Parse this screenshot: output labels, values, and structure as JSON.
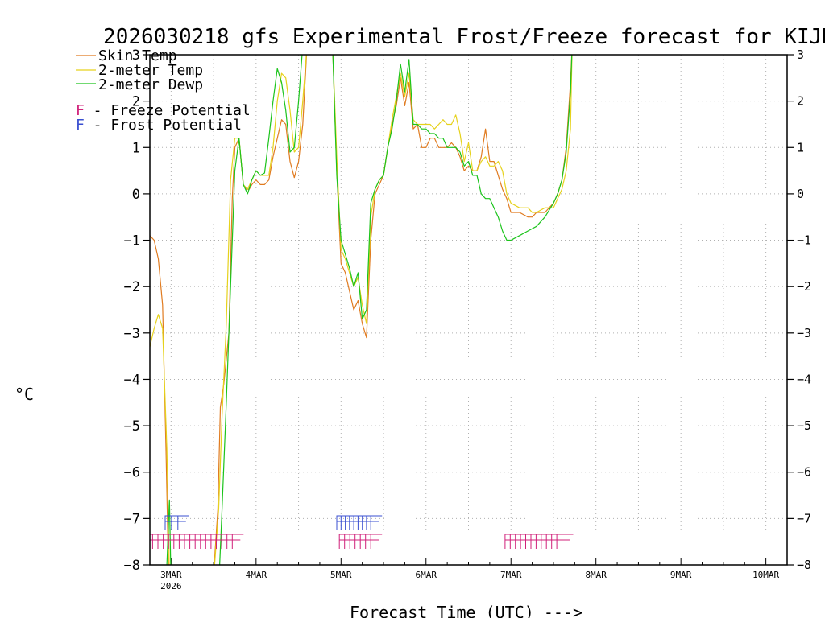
{
  "chart_data": {
    "type": "line",
    "title": "2026030218 gfs Experimental Frost/Freeze forecast for KIJD",
    "ylabel": "°C",
    "xlabel": "Forecast Time (UTC) --->",
    "ylim": [
      -8,
      3
    ],
    "xlim": [
      2.75,
      10.25
    ],
    "yticks": [
      "−8",
      "−7",
      "−6",
      "−5",
      "−4",
      "−3",
      "−2",
      "−1",
      "0",
      "1",
      "2",
      "3"
    ],
    "yticks_right": [
      "−8",
      "−7",
      "−6",
      "−5",
      "−4",
      "−3",
      "−2",
      "−1",
      "0",
      "1",
      "2",
      "3"
    ],
    "xticks": [
      "3MAR",
      "4MAR",
      "5MAR",
      "6MAR",
      "7MAR",
      "8MAR",
      "9MAR",
      "10MAR"
    ],
    "xtick_sublabel": "2026",
    "grid": true,
    "legend": [
      {
        "label": "Skin Temp",
        "color": "#e07b20"
      },
      {
        "label": "2-meter Temp",
        "color": "#e6d21c"
      },
      {
        "label": "2-meter Dewp",
        "color": "#1cc41c"
      }
    ],
    "potential_legend": [
      {
        "marker": "F",
        "text": " - Freeze Potential",
        "color": "#d0207a"
      },
      {
        "marker": "F",
        "text": " - Frost Potential",
        "color": "#3a4fd0"
      }
    ],
    "series": [
      {
        "name": "Skin Temp",
        "color": "#e07b20",
        "x": [
          2.75,
          2.8,
          2.85,
          2.9,
          2.94,
          2.97,
          3.0,
          3.05,
          3.1,
          3.2,
          3.3,
          3.4,
          3.5,
          3.55,
          3.58,
          3.62,
          3.68,
          3.72,
          3.75,
          3.8,
          3.85,
          3.88,
          3.92,
          3.95,
          4.0,
          4.05,
          4.1,
          4.15,
          4.2,
          4.25,
          4.3,
          4.35,
          4.4,
          4.45,
          4.5,
          4.55,
          4.6,
          4.65,
          4.9,
          4.95,
          5.0,
          5.05,
          5.1,
          5.15,
          5.2,
          5.25,
          5.3,
          5.35,
          5.4,
          5.45,
          5.5,
          5.55,
          5.6,
          5.65,
          5.7,
          5.75,
          5.8,
          5.85,
          5.9,
          5.95,
          6.0,
          6.05,
          6.1,
          6.15,
          6.2,
          6.25,
          6.3,
          6.35,
          6.4,
          6.45,
          6.5,
          6.55,
          6.6,
          6.65,
          6.7,
          6.75,
          6.8,
          6.85,
          6.9,
          6.95,
          7.0,
          7.1,
          7.2,
          7.25,
          7.3,
          7.4,
          7.5,
          7.55,
          7.6,
          7.65,
          7.7,
          7.72
        ],
        "values": [
          -0.9,
          -1.0,
          -1.4,
          -2.4,
          -5.5,
          -8.2,
          -8.5,
          -8.5,
          -8.5,
          -8.5,
          -8.5,
          -8.5,
          -8.2,
          -6.8,
          -4.6,
          -4.1,
          -3.0,
          -0.1,
          1.0,
          1.2,
          0.2,
          0.1,
          0.1,
          0.2,
          0.3,
          0.2,
          0.2,
          0.3,
          0.8,
          1.2,
          1.6,
          1.5,
          0.7,
          0.35,
          0.7,
          1.5,
          3.2,
          3.2,
          3.2,
          0.5,
          -1.5,
          -1.7,
          -2.1,
          -2.5,
          -2.3,
          -2.8,
          -3.1,
          -1.0,
          0.0,
          0.2,
          0.4,
          1.0,
          1.5,
          1.9,
          2.5,
          1.9,
          2.4,
          1.4,
          1.5,
          1.0,
          1.0,
          1.2,
          1.2,
          1.0,
          1.0,
          1.0,
          1.1,
          1.0,
          0.8,
          0.5,
          0.6,
          0.5,
          0.5,
          0.8,
          1.4,
          0.7,
          0.7,
          0.4,
          0.1,
          -0.1,
          -0.4,
          -0.4,
          -0.5,
          -0.5,
          -0.4,
          -0.4,
          -0.2,
          0.0,
          0.3,
          1.0,
          2.4,
          3.2
        ]
      },
      {
        "name": "2-meter Temp",
        "color": "#e6d21c",
        "x": [
          2.75,
          2.8,
          2.85,
          2.9,
          2.95,
          2.98,
          3.0,
          3.1,
          3.2,
          3.3,
          3.4,
          3.5,
          3.56,
          3.6,
          3.65,
          3.7,
          3.75,
          3.8,
          3.85,
          3.9,
          3.95,
          4.0,
          4.05,
          4.1,
          4.15,
          4.2,
          4.25,
          4.3,
          4.35,
          4.4,
          4.45,
          4.5,
          4.55,
          4.6,
          4.65,
          4.9,
          4.95,
          5.0,
          5.05,
          5.1,
          5.15,
          5.2,
          5.25,
          5.3,
          5.35,
          5.4,
          5.45,
          5.5,
          5.55,
          5.6,
          5.65,
          5.7,
          5.75,
          5.8,
          5.85,
          5.9,
          5.95,
          6.0,
          6.05,
          6.1,
          6.15,
          6.2,
          6.25,
          6.3,
          6.35,
          6.4,
          6.45,
          6.5,
          6.55,
          6.6,
          6.65,
          6.7,
          6.75,
          6.8,
          6.85,
          6.9,
          6.95,
          7.0,
          7.1,
          7.2,
          7.25,
          7.3,
          7.4,
          7.5,
          7.55,
          7.6,
          7.65,
          7.7,
          7.72
        ],
        "values": [
          -3.3,
          -2.9,
          -2.6,
          -2.9,
          -5.5,
          -8.2,
          -8.5,
          -8.5,
          -8.5,
          -8.5,
          -8.5,
          -8.3,
          -6.8,
          -4.8,
          -2.8,
          0.3,
          1.2,
          1.2,
          0.2,
          0.1,
          0.3,
          0.5,
          0.4,
          0.4,
          0.4,
          1.0,
          2.0,
          2.6,
          2.5,
          1.8,
          0.9,
          1.0,
          2.0,
          3.2,
          3.2,
          3.2,
          0.8,
          -1.2,
          -1.4,
          -1.7,
          -2.0,
          -1.8,
          -2.4,
          -2.8,
          -0.5,
          0.1,
          0.3,
          0.4,
          1.0,
          1.6,
          2.1,
          2.6,
          2.1,
          2.6,
          1.6,
          1.5,
          1.5,
          1.5,
          1.5,
          1.4,
          1.5,
          1.6,
          1.5,
          1.5,
          1.7,
          1.3,
          0.7,
          1.1,
          0.5,
          0.5,
          0.7,
          0.8,
          0.6,
          0.6,
          0.7,
          0.5,
          0.0,
          -0.2,
          -0.3,
          -0.3,
          -0.4,
          -0.4,
          -0.3,
          -0.3,
          -0.1,
          0.1,
          0.5,
          1.4,
          3.2
        ]
      },
      {
        "name": "2-meter Dewp",
        "color": "#1cc41c",
        "x": [
          2.75,
          2.9,
          2.95,
          2.98,
          3.0,
          3.1,
          3.2,
          3.3,
          3.4,
          3.5,
          3.56,
          3.6,
          3.65,
          3.7,
          3.75,
          3.8,
          3.85,
          3.9,
          3.95,
          4.0,
          4.05,
          4.1,
          4.15,
          4.2,
          4.25,
          4.3,
          4.35,
          4.4,
          4.45,
          4.5,
          4.55,
          4.6,
          4.65,
          4.9,
          4.95,
          5.0,
          5.05,
          5.1,
          5.15,
          5.2,
          5.25,
          5.3,
          5.35,
          5.4,
          5.45,
          5.5,
          5.55,
          5.6,
          5.65,
          5.7,
          5.75,
          5.8,
          5.85,
          5.9,
          5.95,
          6.0,
          6.05,
          6.1,
          6.15,
          6.2,
          6.25,
          6.3,
          6.35,
          6.4,
          6.45,
          6.5,
          6.55,
          6.6,
          6.65,
          6.7,
          6.75,
          6.8,
          6.85,
          6.9,
          6.95,
          7.0,
          7.1,
          7.2,
          7.3,
          7.4,
          7.5,
          7.55,
          7.6,
          7.65,
          7.7,
          7.72
        ],
        "values": [
          -8.5,
          -8.5,
          -8.0,
          -6.6,
          -8.5,
          -8.5,
          -8.5,
          -8.5,
          -8.5,
          -8.5,
          -8.5,
          -6.8,
          -4.5,
          -2.0,
          0.5,
          1.2,
          0.2,
          0.0,
          0.3,
          0.5,
          0.4,
          0.45,
          1.2,
          2.0,
          2.7,
          2.4,
          1.8,
          0.9,
          1.0,
          2.0,
          3.2,
          3.2,
          3.2,
          3.2,
          0.4,
          -1.0,
          -1.3,
          -1.6,
          -2.0,
          -1.7,
          -2.7,
          -2.5,
          -0.2,
          0.1,
          0.3,
          0.4,
          1.0,
          1.4,
          2.0,
          2.8,
          2.2,
          2.9,
          1.5,
          1.5,
          1.4,
          1.4,
          1.3,
          1.3,
          1.2,
          1.2,
          1.0,
          1.0,
          1.0,
          0.9,
          0.6,
          0.7,
          0.4,
          0.4,
          0.0,
          -0.1,
          -0.1,
          -0.3,
          -0.5,
          -0.8,
          -1.0,
          -1.0,
          -0.9,
          -0.8,
          -0.7,
          -0.5,
          -0.2,
          0.0,
          0.3,
          0.9,
          2.2,
          3.2
        ]
      }
    ],
    "freeze_marks": [
      {
        "start": 2.72,
        "end": 3.72,
        "count": 17
      },
      {
        "start": 4.98,
        "end": 5.35,
        "count": 7
      },
      {
        "start": 6.93,
        "end": 7.6,
        "count": 12
      }
    ],
    "frost_marks": [
      {
        "start": 2.93,
        "end": 3.08,
        "count": 3
      },
      {
        "start": 4.95,
        "end": 5.35,
        "count": 9
      }
    ]
  }
}
